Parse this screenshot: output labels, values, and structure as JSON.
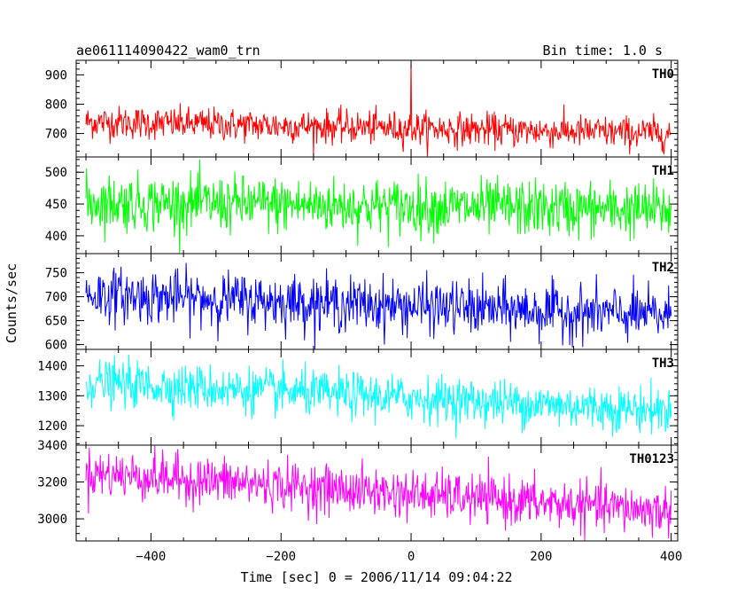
{
  "header": {
    "source": "ae061114090422_wam0_trn",
    "bin_time": "Bin time: 1.0 s"
  },
  "chart_data": {
    "type": "line",
    "xlabel": "Time [sec] 0 = 2006/11/14 09:04:22",
    "ylabel": "Counts/sec",
    "xlim": [
      -515,
      410
    ],
    "x_ticks": [
      -400,
      -200,
      0,
      200,
      400
    ],
    "x_tick_labels": [
      "−400",
      "−200",
      "0",
      "200",
      "400"
    ],
    "x_range_data": [
      -500,
      400
    ],
    "series": [
      {
        "name": "TH0",
        "color": "#ff0000",
        "ylim": [
          620,
          950
        ],
        "y_ticks": [
          700,
          800,
          900
        ],
        "mean_start": 740,
        "mean_end": 700,
        "noise": 28,
        "spike_at": 0,
        "spike_value": 950
      },
      {
        "name": "TH1",
        "color": "#00ff00",
        "ylim": [
          372,
          524
        ],
        "y_ticks": [
          400,
          450,
          500
        ],
        "mean_start": 453,
        "mean_end": 440,
        "noise": 22
      },
      {
        "name": "TH2",
        "color": "#0000ff",
        "ylim": [
          590,
          790
        ],
        "y_ticks": [
          600,
          650,
          700,
          750
        ],
        "mean_start": 705,
        "mean_end": 660,
        "noise": 28
      },
      {
        "name": "TH3",
        "color": "#00ffff",
        "ylim": [
          1135,
          1455
        ],
        "y_ticks": [
          1200,
          1300,
          1400
        ],
        "mean_start": 1345,
        "mean_end": 1250,
        "noise": 38
      },
      {
        "name": "TH0123",
        "color": "#ff00ff",
        "ylim": [
          2880,
          3400
        ],
        "y_ticks": [
          3000,
          3200,
          3400
        ],
        "mean_start": 3250,
        "mean_end": 3040,
        "noise": 65
      }
    ]
  }
}
